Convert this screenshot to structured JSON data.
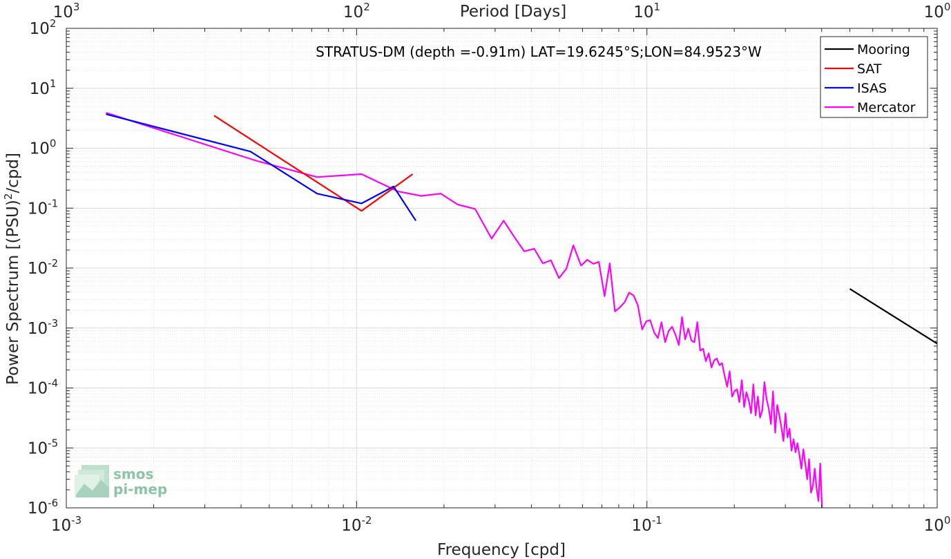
{
  "chart_data": {
    "type": "line",
    "xscale": "log",
    "yscale": "log",
    "xlim": [
      0.001,
      1
    ],
    "ylim": [
      1e-06,
      100
    ],
    "grid": true,
    "xlabel": "Frequency [cpd]",
    "ylabel_prefix": "Power Spectrum [(PSU)",
    "ylabel_sup": "2",
    "ylabel_suffix": "/cpd]",
    "top_axis_label": "Period [Days]",
    "annotation": "STRATUS-DM (depth =-0.91m) LAT=19.6245°S;LON=84.9523°W",
    "legend_position": "top-right",
    "x_ticks": [
      {
        "value": 0.001,
        "base": "10",
        "exp": "-3"
      },
      {
        "value": 0.01,
        "base": "10",
        "exp": "-2"
      },
      {
        "value": 0.1,
        "base": "10",
        "exp": "-1"
      },
      {
        "value": 1,
        "base": "10",
        "exp": "0"
      }
    ],
    "top_ticks": [
      {
        "value": 0.001,
        "base": "10",
        "exp": "3"
      },
      {
        "value": 0.01,
        "base": "10",
        "exp": "2"
      },
      {
        "value": 0.1,
        "base": "10",
        "exp": "1"
      },
      {
        "value": 1,
        "base": "10",
        "exp": "0"
      }
    ],
    "y_ticks": [
      {
        "value": 100,
        "base": "10",
        "exp": "2"
      },
      {
        "value": 10,
        "base": "10",
        "exp": "1"
      },
      {
        "value": 1,
        "base": "10",
        "exp": "0"
      },
      {
        "value": 0.1,
        "base": "10",
        "exp": "-1"
      },
      {
        "value": 0.01,
        "base": "10",
        "exp": "-2"
      },
      {
        "value": 0.001,
        "base": "10",
        "exp": "-3"
      },
      {
        "value": 0.0001,
        "base": "10",
        "exp": "-4"
      },
      {
        "value": 1e-05,
        "base": "10",
        "exp": "-5"
      },
      {
        "value": 1e-06,
        "base": "10",
        "exp": "-6"
      }
    ],
    "series": [
      {
        "name": "Mooring",
        "color": "#000000",
        "x": [
          0.5,
          1.0
        ],
        "y": [
          0.0045,
          0.00055
        ]
      },
      {
        "name": "SAT",
        "color": "#ff0000",
        "x": [
          0.00323,
          0.0104,
          0.0156
        ],
        "y": [
          3.5,
          0.09,
          0.37
        ]
      },
      {
        "name": "ISAS",
        "color": "#0000ff",
        "x": [
          0.00137,
          0.00431,
          0.00731,
          0.0104,
          0.0134,
          0.016
        ],
        "y": [
          3.7,
          0.88,
          0.175,
          0.12,
          0.23,
          0.062
        ]
      },
      {
        "name": "Mercator",
        "color": "#ff00ff",
        "x": [
          0.00137,
          0.0045,
          0.00731,
          0.0104,
          0.0139,
          0.0167,
          0.0195,
          0.0223,
          0.0256,
          0.0292,
          0.0321,
          0.0348,
          0.0378,
          0.0409,
          0.0438,
          0.0467,
          0.0498,
          0.0528,
          0.0558,
          0.0593,
          0.0623,
          0.0654,
          0.0683,
          0.0715,
          0.0745,
          0.0776,
          0.0807,
          0.0838,
          0.0869,
          0.09,
          0.0931,
          0.0963,
          0.0995,
          0.1027,
          0.1059,
          0.1091,
          0.1123,
          0.1156,
          0.1188,
          0.1221,
          0.1254,
          0.1288,
          0.1321,
          0.1355,
          0.1389,
          0.1423,
          0.1457,
          0.1492,
          0.1527,
          0.1562,
          0.1597,
          0.1633,
          0.1669,
          0.1705,
          0.1741,
          0.1778,
          0.1815,
          0.1852,
          0.189,
          0.1928,
          0.1966,
          0.2005,
          0.2044,
          0.2083,
          0.2123,
          0.2163,
          0.2203,
          0.2244,
          0.2285,
          0.2327,
          0.2369,
          0.2411,
          0.2454,
          0.2497,
          0.2541,
          0.2585,
          0.263,
          0.2675,
          0.272,
          0.2766,
          0.2812,
          0.2859,
          0.2906,
          0.2954,
          0.3002,
          0.3051,
          0.31,
          0.315,
          0.32,
          0.3251,
          0.3302,
          0.3354,
          0.3406,
          0.3459,
          0.3512,
          0.3566,
          0.362,
          0.3675,
          0.373,
          0.3786,
          0.3842,
          0.3899,
          0.3956,
          0.4014
        ],
        "y": [
          3.9,
          0.62,
          0.33,
          0.37,
          0.19,
          0.16,
          0.175,
          0.115,
          0.097,
          0.031,
          0.062,
          0.034,
          0.019,
          0.021,
          0.012,
          0.0135,
          0.0068,
          0.0098,
          0.024,
          0.011,
          0.0138,
          0.0118,
          0.0127,
          0.0034,
          0.012,
          0.0019,
          0.0022,
          0.0027,
          0.0039,
          0.0035,
          0.0024,
          0.00095,
          0.0013,
          0.00135,
          0.00085,
          0.00068,
          0.00125,
          0.00058,
          0.00089,
          0.00105,
          0.00078,
          0.00052,
          0.00152,
          0.00065,
          0.00098,
          0.00062,
          0.00058,
          0.00125,
          0.00042,
          0.00045,
          0.00028,
          0.00038,
          0.00022,
          0.00029,
          0.00031,
          0.00024,
          0.00026,
          0.00016,
          0.000105,
          0.00019,
          7.2e-05,
          8.9e-05,
          9.5e-05,
          5.8e-05,
          0.000135,
          4.8e-05,
          8.5e-05,
          6.2e-05,
          3.8e-05,
          0.000115,
          3.5e-05,
          7.2e-05,
          3.2e-05,
          4.2e-05,
          0.000125,
          6.5e-05,
          4.5e-05,
          2.5e-05,
          8.8e-05,
          1.8e-05,
          5.2e-05,
          3.5e-05,
          2.2e-05,
          1.3e-05,
          3.8e-05,
          1.5e-05,
          2.1e-05,
          9e-06,
          1.4e-05,
          8.5e-06,
          1.2e-05,
          7.5e-06,
          4.5e-06,
          9.5e-06,
          5.5e-06,
          3e-06,
          6.5e-06,
          1.8e-06,
          2.3e-06,
          4.5e-06,
          2.1e-06,
          1.3e-06,
          5.5e-06,
          9e-07
        ]
      }
    ]
  },
  "logo": {
    "line1": "smos",
    "line2": "pi-mep"
  }
}
